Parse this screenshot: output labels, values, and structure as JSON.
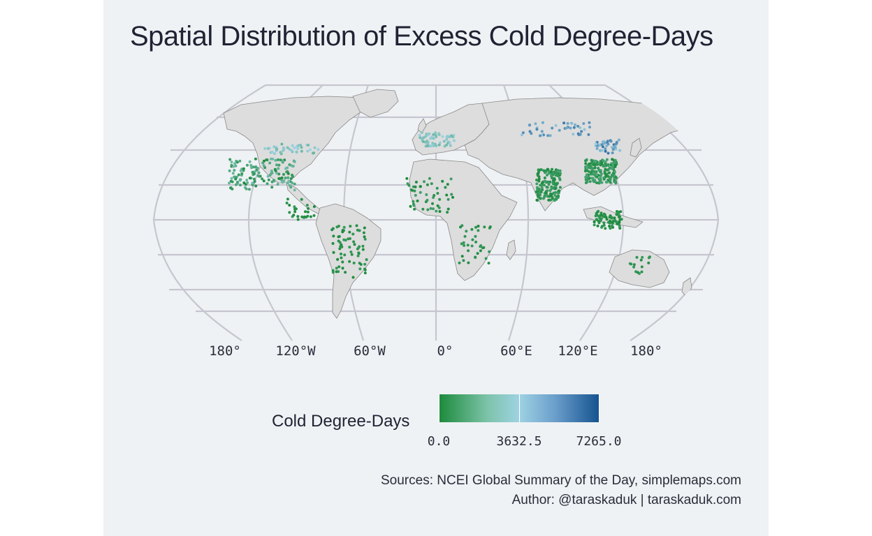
{
  "title": "Spatial Distribution of Excess Cold Degree-Days",
  "graticule_color": "#c4c4cf",
  "land_color": "#dddddd",
  "longitude_labels": [
    "180°",
    "120°W",
    "60°W",
    "0°",
    "60°E",
    "120°E",
    "180°"
  ],
  "legend": {
    "title": "Cold Degree-Days",
    "min_label": "0.0",
    "mid_label": "3632.5",
    "max_label": "7265.0",
    "min_value": 0,
    "mid_value": 3632.5,
    "max_value": 7265,
    "color_low": "#1b8a3a",
    "color_mid": "#9ed2e2",
    "color_high": "#14528f"
  },
  "sources_line": "Sources: NCEI Global Summary of the Day, simplemaps.com",
  "author_line": "Author: @taraskaduk | taraskaduk.com"
}
